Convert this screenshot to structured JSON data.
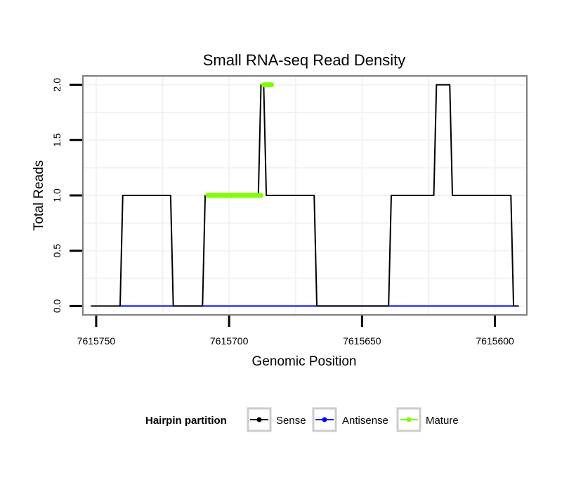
{
  "chart_data": {
    "type": "line",
    "title": "Small RNA-seq Read Density",
    "xlabel": "Genomic Position",
    "ylabel": "Total Reads",
    "xlim": [
      7615755,
      7615588
    ],
    "ylim": [
      -0.08,
      2.08
    ],
    "x_ticks": [
      7615750,
      7615700,
      7615650,
      7615600
    ],
    "x_tick_labels": [
      "7615750",
      "7615700",
      "7615650",
      "7615600"
    ],
    "y_ticks": [
      0,
      0.5,
      1,
      1.5,
      2
    ],
    "y_tick_labels": [
      "0.0",
      "0.5",
      "1.0",
      "1.5",
      "2.0"
    ],
    "grid": true,
    "legend_position": "bottom",
    "legend_title": "Hairpin partition",
    "series": [
      {
        "name": "Sense",
        "color": "#000000",
        "x": [
          7615752,
          7615741,
          7615740,
          7615722,
          7615721,
          7615710,
          7615709,
          7615689,
          7615688,
          7615687,
          7615686,
          7615684,
          7615683,
          7615668,
          7615667,
          7615640,
          7615639,
          7615623,
          7615622,
          7615617,
          7615616,
          7615606,
          7615605,
          7615594,
          7615593,
          7615591
        ],
        "y": [
          0,
          0,
          1,
          1,
          0,
          0,
          1,
          1,
          2,
          2,
          1,
          1,
          1,
          1,
          0,
          0,
          1,
          1,
          2,
          2,
          1,
          1,
          1,
          1,
          0,
          0
        ]
      },
      {
        "name": "Antisense",
        "color": "#0000ff",
        "x": [
          7615741,
          7615593
        ],
        "y": [
          0,
          0
        ]
      },
      {
        "name": "Mature",
        "color": "#7fff00",
        "segments": [
          {
            "x": [
              7615708,
              7615688
            ],
            "y": [
              1,
              1
            ]
          },
          {
            "x": [
              7615687,
              7615684
            ],
            "y": [
              2,
              2
            ]
          }
        ]
      }
    ]
  }
}
